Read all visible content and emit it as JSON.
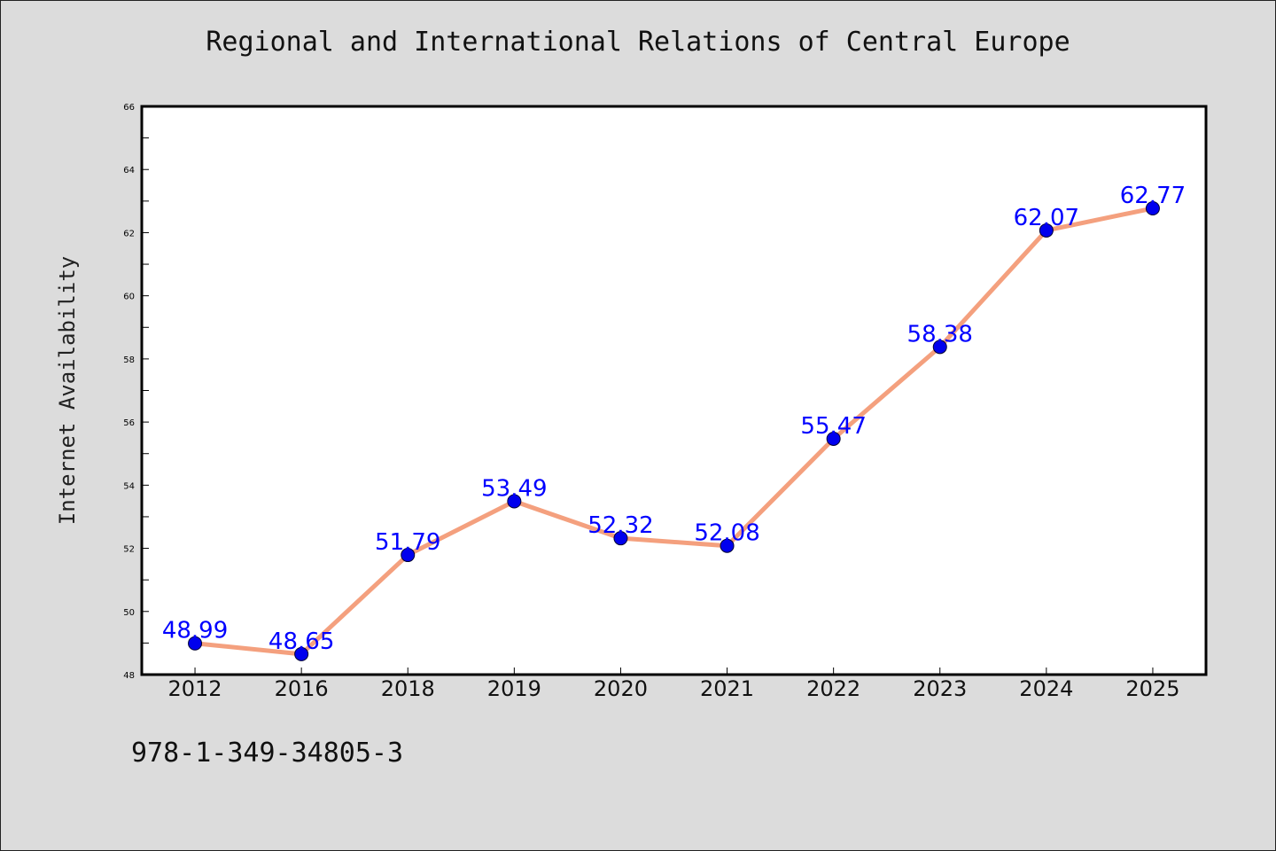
{
  "chart_data": {
    "type": "line",
    "title": "Regional and International Relations of Central Europe",
    "xlabel": "",
    "ylabel": "Internet Availability",
    "categories": [
      "2012",
      "2016",
      "2018",
      "2019",
      "2020",
      "2021",
      "2022",
      "2023",
      "2024",
      "2025"
    ],
    "values": [
      48.99,
      48.65,
      51.79,
      53.49,
      52.32,
      52.08,
      55.47,
      58.38,
      62.07,
      62.77
    ],
    "data_labels": [
      "48.99",
      "48.65",
      "51.79",
      "53.49",
      "52.32",
      "52.08",
      "55.47",
      "58.38",
      "62.07",
      "62.77"
    ],
    "ylim": [
      48,
      66
    ],
    "yticks": [
      48,
      50,
      52,
      54,
      56,
      58,
      60,
      62,
      64,
      66
    ],
    "grid": false,
    "line_color": "#f4a07e",
    "marker_color": "#0000ee",
    "label_color": "#0000ff"
  },
  "footer": {
    "isbn": "978-1-349-34805-3"
  }
}
